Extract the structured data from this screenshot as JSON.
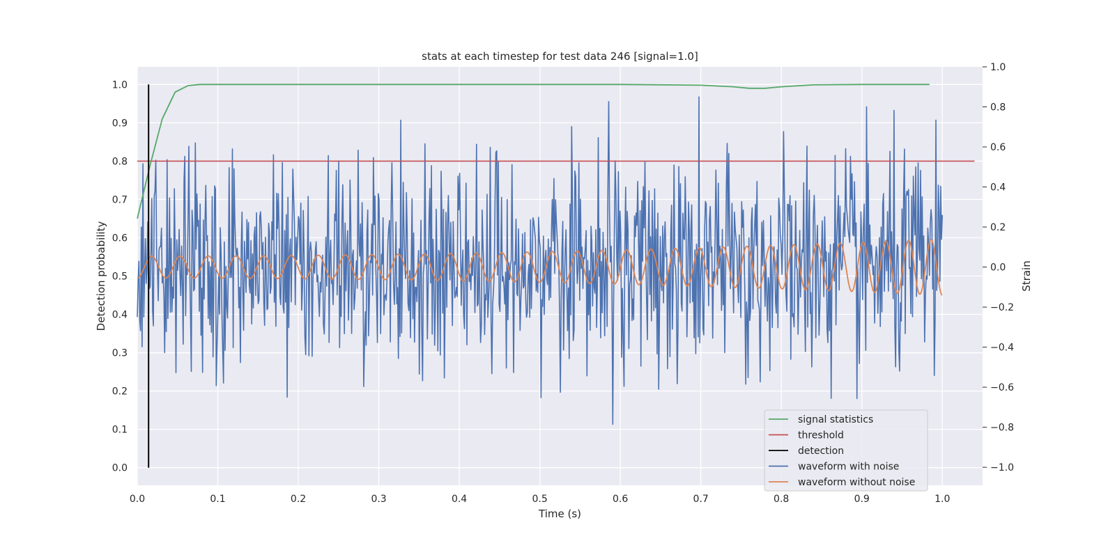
{
  "chart_data": {
    "type": "line",
    "title": "stats at each timestep for test data 246 [signal=1.0]",
    "xlabel": "Time (s)",
    "ylabel_left": "Detection probability",
    "ylabel_right": "Strain",
    "xlim": [
      0.0,
      1.05
    ],
    "ylim_left": [
      -0.046,
      1.046
    ],
    "ylim_right": [
      -1.09,
      1.0
    ],
    "x_ticks": [
      "0.0",
      "0.1",
      "0.2",
      "0.3",
      "0.4",
      "0.5",
      "0.6",
      "0.7",
      "0.8",
      "0.9",
      "1.0"
    ],
    "y_ticks_left": [
      "0.0",
      "0.1",
      "0.2",
      "0.3",
      "0.4",
      "0.5",
      "0.6",
      "0.7",
      "0.8",
      "0.9",
      "1.0"
    ],
    "y_ticks_right": [
      "−1.0",
      "−0.8",
      "−0.6",
      "−0.4",
      "−0.2",
      "0.0",
      "0.2",
      "0.4",
      "0.6",
      "0.8",
      "1.0"
    ],
    "grid": true,
    "legend_position": "lower-right",
    "colors": {
      "background": "#eaeaf2",
      "grid": "#ffffff",
      "signal_statistics": "#55a868",
      "threshold": "#c44e52",
      "detection": "#000000",
      "waveform_with_noise": "#4c72b0",
      "waveform_without_noise": "#dd8452"
    },
    "series": [
      {
        "name": "signal statistics",
        "axis": "left",
        "x": [
          0.0,
          0.016,
          0.031,
          0.047,
          0.063,
          0.078,
          0.1,
          0.2,
          0.4,
          0.6,
          0.7,
          0.74,
          0.76,
          0.78,
          0.8,
          0.84,
          0.9,
          0.984
        ],
        "y": [
          0.65,
          0.79,
          0.91,
          0.98,
          0.997,
          1.0,
          1.0,
          1.0,
          1.0,
          1.0,
          0.998,
          0.994,
          0.99,
          0.99,
          0.994,
          0.999,
          1.0,
          1.0
        ]
      },
      {
        "name": "threshold",
        "axis": "left",
        "x": [
          0.0,
          1.04
        ],
        "y": [
          0.8,
          0.8
        ]
      },
      {
        "name": "detection",
        "axis": "left",
        "x": [
          0.014,
          0.014
        ],
        "y": [
          0.0,
          1.0
        ]
      },
      {
        "name": "waveform with noise",
        "axis": "right",
        "x": [
          0.0,
          1.0
        ],
        "y": [
          -0.25,
          0.26
        ],
        "y_range": [
          -1.0,
          1.0
        ],
        "samples": 1000
      },
      {
        "name": "waveform without noise",
        "axis": "right",
        "x": [
          0.0,
          1.0
        ],
        "y": [
          -0.05,
          -0.13
        ],
        "frequency_hz": [
          28,
          36
        ],
        "amplitude": [
          0.055,
          0.14
        ]
      }
    ]
  }
}
